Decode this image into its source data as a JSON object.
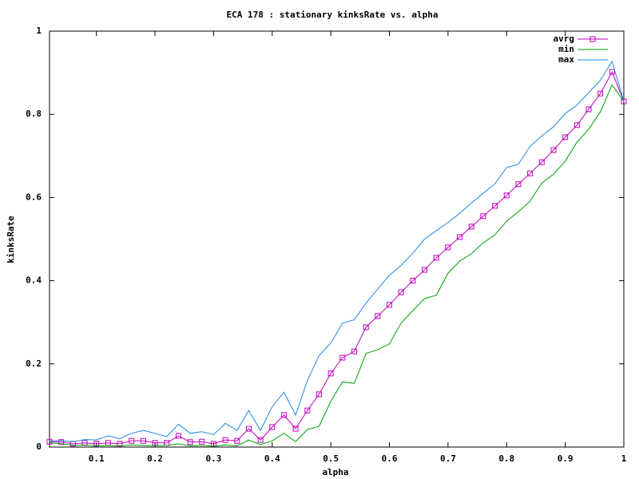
{
  "chart_data": {
    "type": "line",
    "title": "ECA 178 : stationary kinksRate vs. alpha",
    "x_label": "alpha",
    "y_label": "kinksRate",
    "x": [
      0.02,
      0.04,
      0.06,
      0.08,
      0.1,
      0.12,
      0.14,
      0.16,
      0.18,
      0.2,
      0.22,
      0.24,
      0.26,
      0.28,
      0.3,
      0.32,
      0.34,
      0.36,
      0.38,
      0.4,
      0.42,
      0.44,
      0.46,
      0.48,
      0.5,
      0.52,
      0.54,
      0.56,
      0.58,
      0.6,
      0.62,
      0.64,
      0.66,
      0.68,
      0.7,
      0.72,
      0.74,
      0.76,
      0.78,
      0.8,
      0.82,
      0.84,
      0.86,
      0.88,
      0.9,
      0.92,
      0.94,
      0.96,
      0.98,
      1
    ],
    "series": [
      {
        "name": "avrg",
        "color": "#c000c0",
        "marker": "square",
        "values": [
          0.013,
          0.012,
          0.008,
          0.01,
          0.008,
          0.01,
          0.008,
          0.015,
          0.015,
          0.01,
          0.01,
          0.027,
          0.012,
          0.013,
          0.008,
          0.017,
          0.015,
          0.044,
          0.017,
          0.048,
          0.077,
          0.044,
          0.088,
          0.127,
          0.177,
          0.215,
          0.23,
          0.288,
          0.315,
          0.342,
          0.372,
          0.4,
          0.426,
          0.455,
          0.48,
          0.505,
          0.53,
          0.555,
          0.58,
          0.605,
          0.632,
          0.658,
          0.685,
          0.714,
          0.745,
          0.774,
          0.812,
          0.85,
          0.902,
          0.831
        ]
      },
      {
        "name": "min",
        "color": "#00a000",
        "values": [
          0.01,
          0.008,
          0.004,
          0.005,
          0.003,
          0.004,
          0.003,
          0.005,
          0.004,
          0.003,
          0.004,
          0.008,
          0.003,
          0.004,
          0.002,
          0.005,
          0.003,
          0.017,
          0.006,
          0.015,
          0.033,
          0.013,
          0.042,
          0.05,
          0.11,
          0.157,
          0.153,
          0.225,
          0.234,
          0.248,
          0.298,
          0.328,
          0.357,
          0.365,
          0.418,
          0.447,
          0.465,
          0.491,
          0.51,
          0.543,
          0.566,
          0.591,
          0.635,
          0.656,
          0.687,
          0.733,
          0.764,
          0.806,
          0.871,
          0.831
        ]
      },
      {
        "name": "max",
        "color": "#1e88e5",
        "values": [
          0.015,
          0.015,
          0.013,
          0.018,
          0.017,
          0.027,
          0.02,
          0.033,
          0.04,
          0.033,
          0.025,
          0.055,
          0.033,
          0.037,
          0.03,
          0.057,
          0.04,
          0.088,
          0.04,
          0.097,
          0.132,
          0.077,
          0.16,
          0.22,
          0.25,
          0.298,
          0.306,
          0.346,
          0.38,
          0.413,
          0.437,
          0.466,
          0.5,
          0.52,
          0.54,
          0.562,
          0.587,
          0.61,
          0.633,
          0.672,
          0.68,
          0.723,
          0.748,
          0.77,
          0.802,
          0.822,
          0.852,
          0.882,
          0.927,
          0.831
        ]
      }
    ],
    "xlim": [
      0.02,
      1
    ],
    "ylim": [
      0,
      1
    ],
    "xticks": [
      0.1,
      0.2,
      0.3,
      0.4,
      0.5,
      0.6,
      0.7,
      0.8,
      0.9,
      1
    ],
    "yticks": [
      0,
      0.2,
      0.4,
      0.6,
      0.8,
      1
    ],
    "legend": "top-right",
    "grid": false
  }
}
